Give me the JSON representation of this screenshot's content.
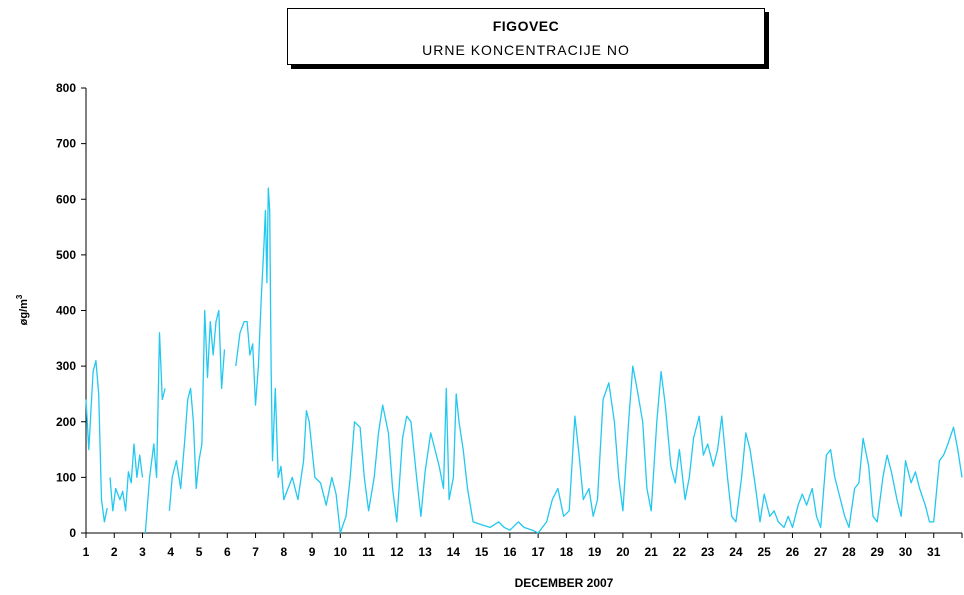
{
  "chart_data": {
    "type": "line",
    "title": "FIGOVEC",
    "subtitle": "URNE KONCENTRACIJE NO",
    "xlabel": "DECEMBER 2007",
    "ylabel_main": "øg/m",
    "ylabel_sup": "3",
    "ylim": [
      0,
      800
    ],
    "yticks": [
      0,
      100,
      200,
      300,
      400,
      500,
      600,
      700,
      800
    ],
    "xlim": [
      1,
      32
    ],
    "xticks": [
      "1",
      "2",
      "3",
      "4",
      "5",
      "6",
      "7",
      "8",
      "9",
      "10",
      "11",
      "12",
      "13",
      "14",
      "15",
      "16",
      "17",
      "18",
      "19",
      "20",
      "21",
      "22",
      "23",
      "24",
      "25",
      "26",
      "27",
      "28",
      "29",
      "30",
      "31"
    ],
    "grid": false,
    "color": "#22c8f0",
    "series": [
      {
        "points": [
          [
            1.0,
            240
          ],
          [
            1.1,
            150
          ],
          [
            1.25,
            290
          ],
          [
            1.35,
            310
          ],
          [
            1.45,
            250
          ],
          [
            1.55,
            60
          ],
          [
            1.65,
            20
          ],
          [
            1.75,
            45
          ],
          [
            1.85,
            null
          ],
          [
            1.85,
            100
          ],
          [
            1.95,
            40
          ],
          [
            2.05,
            80
          ],
          [
            2.2,
            60
          ],
          [
            2.3,
            75
          ],
          [
            2.4,
            40
          ],
          [
            2.5,
            110
          ],
          [
            2.6,
            90
          ],
          [
            2.7,
            160
          ],
          [
            2.8,
            100
          ],
          [
            2.9,
            140
          ],
          [
            3.0,
            100
          ],
          [
            3.05,
            null
          ],
          [
            3.1,
            0
          ],
          [
            3.25,
            100
          ],
          [
            3.4,
            160
          ],
          [
            3.5,
            100
          ],
          [
            3.6,
            360
          ],
          [
            3.7,
            240
          ],
          [
            3.8,
            260
          ],
          [
            3.85,
            null
          ],
          [
            3.95,
            40
          ],
          [
            4.05,
            100
          ],
          [
            4.2,
            130
          ],
          [
            4.35,
            80
          ],
          [
            4.5,
            170
          ],
          [
            4.6,
            240
          ],
          [
            4.7,
            260
          ],
          [
            4.8,
            200
          ],
          [
            4.9,
            80
          ],
          [
            5.0,
            130
          ],
          [
            5.1,
            160
          ],
          [
            5.2,
            400
          ],
          [
            5.3,
            280
          ],
          [
            5.4,
            380
          ],
          [
            5.5,
            320
          ],
          [
            5.6,
            380
          ],
          [
            5.7,
            400
          ],
          [
            5.8,
            260
          ],
          [
            5.9,
            330
          ],
          [
            5.95,
            null
          ],
          [
            6.3,
            300
          ],
          [
            6.45,
            360
          ],
          [
            6.6,
            380
          ],
          [
            6.7,
            380
          ],
          [
            6.8,
            320
          ],
          [
            6.9,
            340
          ],
          [
            7.0,
            230
          ],
          [
            7.1,
            300
          ],
          [
            7.2,
            420
          ],
          [
            7.3,
            520
          ],
          [
            7.35,
            580
          ],
          [
            7.4,
            450
          ],
          [
            7.45,
            620
          ],
          [
            7.5,
            580
          ],
          [
            7.55,
            300
          ],
          [
            7.6,
            130
          ],
          [
            7.7,
            260
          ],
          [
            7.8,
            100
          ],
          [
            7.9,
            120
          ],
          [
            8.0,
            60
          ],
          [
            8.15,
            80
          ],
          [
            8.3,
            100
          ],
          [
            8.5,
            60
          ],
          [
            8.7,
            130
          ],
          [
            8.8,
            220
          ],
          [
            8.9,
            200
          ],
          [
            9.1,
            100
          ],
          [
            9.3,
            90
          ],
          [
            9.5,
            50
          ],
          [
            9.7,
            100
          ],
          [
            9.85,
            70
          ],
          [
            10.0,
            0
          ],
          [
            10.2,
            30
          ],
          [
            10.35,
            100
          ],
          [
            10.5,
            200
          ],
          [
            10.7,
            190
          ],
          [
            10.85,
            100
          ],
          [
            11.0,
            40
          ],
          [
            11.2,
            100
          ],
          [
            11.35,
            180
          ],
          [
            11.5,
            230
          ],
          [
            11.7,
            180
          ],
          [
            11.85,
            80
          ],
          [
            12.0,
            20
          ],
          [
            12.2,
            170
          ],
          [
            12.35,
            210
          ],
          [
            12.5,
            200
          ],
          [
            12.7,
            100
          ],
          [
            12.85,
            30
          ],
          [
            13.0,
            110
          ],
          [
            13.2,
            180
          ],
          [
            13.35,
            150
          ],
          [
            13.5,
            120
          ],
          [
            13.65,
            80
          ],
          [
            13.75,
            260
          ],
          [
            13.85,
            60
          ],
          [
            14.0,
            100
          ],
          [
            14.1,
            250
          ],
          [
            14.2,
            200
          ],
          [
            14.35,
            150
          ],
          [
            14.5,
            80
          ],
          [
            14.7,
            20
          ],
          [
            15.0,
            15
          ],
          [
            15.3,
            10
          ],
          [
            15.6,
            20
          ],
          [
            15.8,
            10
          ],
          [
            16.0,
            5
          ],
          [
            16.3,
            20
          ],
          [
            16.5,
            10
          ],
          [
            16.8,
            5
          ],
          [
            17.0,
            0
          ],
          [
            17.3,
            20
          ],
          [
            17.5,
            60
          ],
          [
            17.7,
            80
          ],
          [
            17.9,
            30
          ],
          [
            18.1,
            40
          ],
          [
            18.3,
            210
          ],
          [
            18.45,
            140
          ],
          [
            18.6,
            60
          ],
          [
            18.8,
            80
          ],
          [
            18.95,
            30
          ],
          [
            19.1,
            60
          ],
          [
            19.3,
            240
          ],
          [
            19.5,
            270
          ],
          [
            19.7,
            200
          ],
          [
            19.85,
            100
          ],
          [
            20.0,
            40
          ],
          [
            20.2,
            200
          ],
          [
            20.35,
            300
          ],
          [
            20.5,
            260
          ],
          [
            20.7,
            200
          ],
          [
            20.85,
            80
          ],
          [
            21.0,
            40
          ],
          [
            21.2,
            200
          ],
          [
            21.35,
            290
          ],
          [
            21.5,
            230
          ],
          [
            21.7,
            120
          ],
          [
            21.85,
            90
          ],
          [
            22.0,
            150
          ],
          [
            22.2,
            60
          ],
          [
            22.35,
            100
          ],
          [
            22.5,
            170
          ],
          [
            22.7,
            210
          ],
          [
            22.85,
            140
          ],
          [
            23.0,
            160
          ],
          [
            23.2,
            120
          ],
          [
            23.35,
            150
          ],
          [
            23.5,
            210
          ],
          [
            23.7,
            100
          ],
          [
            23.85,
            30
          ],
          [
            24.0,
            20
          ],
          [
            24.2,
            100
          ],
          [
            24.35,
            180
          ],
          [
            24.5,
            150
          ],
          [
            24.7,
            80
          ],
          [
            24.85,
            20
          ],
          [
            25.0,
            70
          ],
          [
            25.2,
            30
          ],
          [
            25.35,
            40
          ],
          [
            25.5,
            20
          ],
          [
            25.7,
            10
          ],
          [
            25.85,
            30
          ],
          [
            26.0,
            10
          ],
          [
            26.2,
            50
          ],
          [
            26.35,
            70
          ],
          [
            26.5,
            50
          ],
          [
            26.7,
            80
          ],
          [
            26.85,
            30
          ],
          [
            27.0,
            10
          ],
          [
            27.2,
            140
          ],
          [
            27.35,
            150
          ],
          [
            27.5,
            100
          ],
          [
            27.7,
            60
          ],
          [
            27.85,
            30
          ],
          [
            28.0,
            10
          ],
          [
            28.2,
            80
          ],
          [
            28.35,
            90
          ],
          [
            28.5,
            170
          ],
          [
            28.7,
            120
          ],
          [
            28.85,
            30
          ],
          [
            29.0,
            20
          ],
          [
            29.2,
            100
          ],
          [
            29.35,
            140
          ],
          [
            29.5,
            110
          ],
          [
            29.7,
            60
          ],
          [
            29.85,
            30
          ],
          [
            30.0,
            130
          ],
          [
            30.2,
            90
          ],
          [
            30.35,
            110
          ],
          [
            30.5,
            80
          ],
          [
            30.7,
            50
          ],
          [
            30.85,
            20
          ],
          [
            31.0,
            20
          ],
          [
            31.2,
            130
          ],
          [
            31.35,
            140
          ],
          [
            31.5,
            160
          ],
          [
            31.7,
            190
          ],
          [
            31.85,
            150
          ],
          [
            32.0,
            100
          ]
        ]
      }
    ]
  }
}
